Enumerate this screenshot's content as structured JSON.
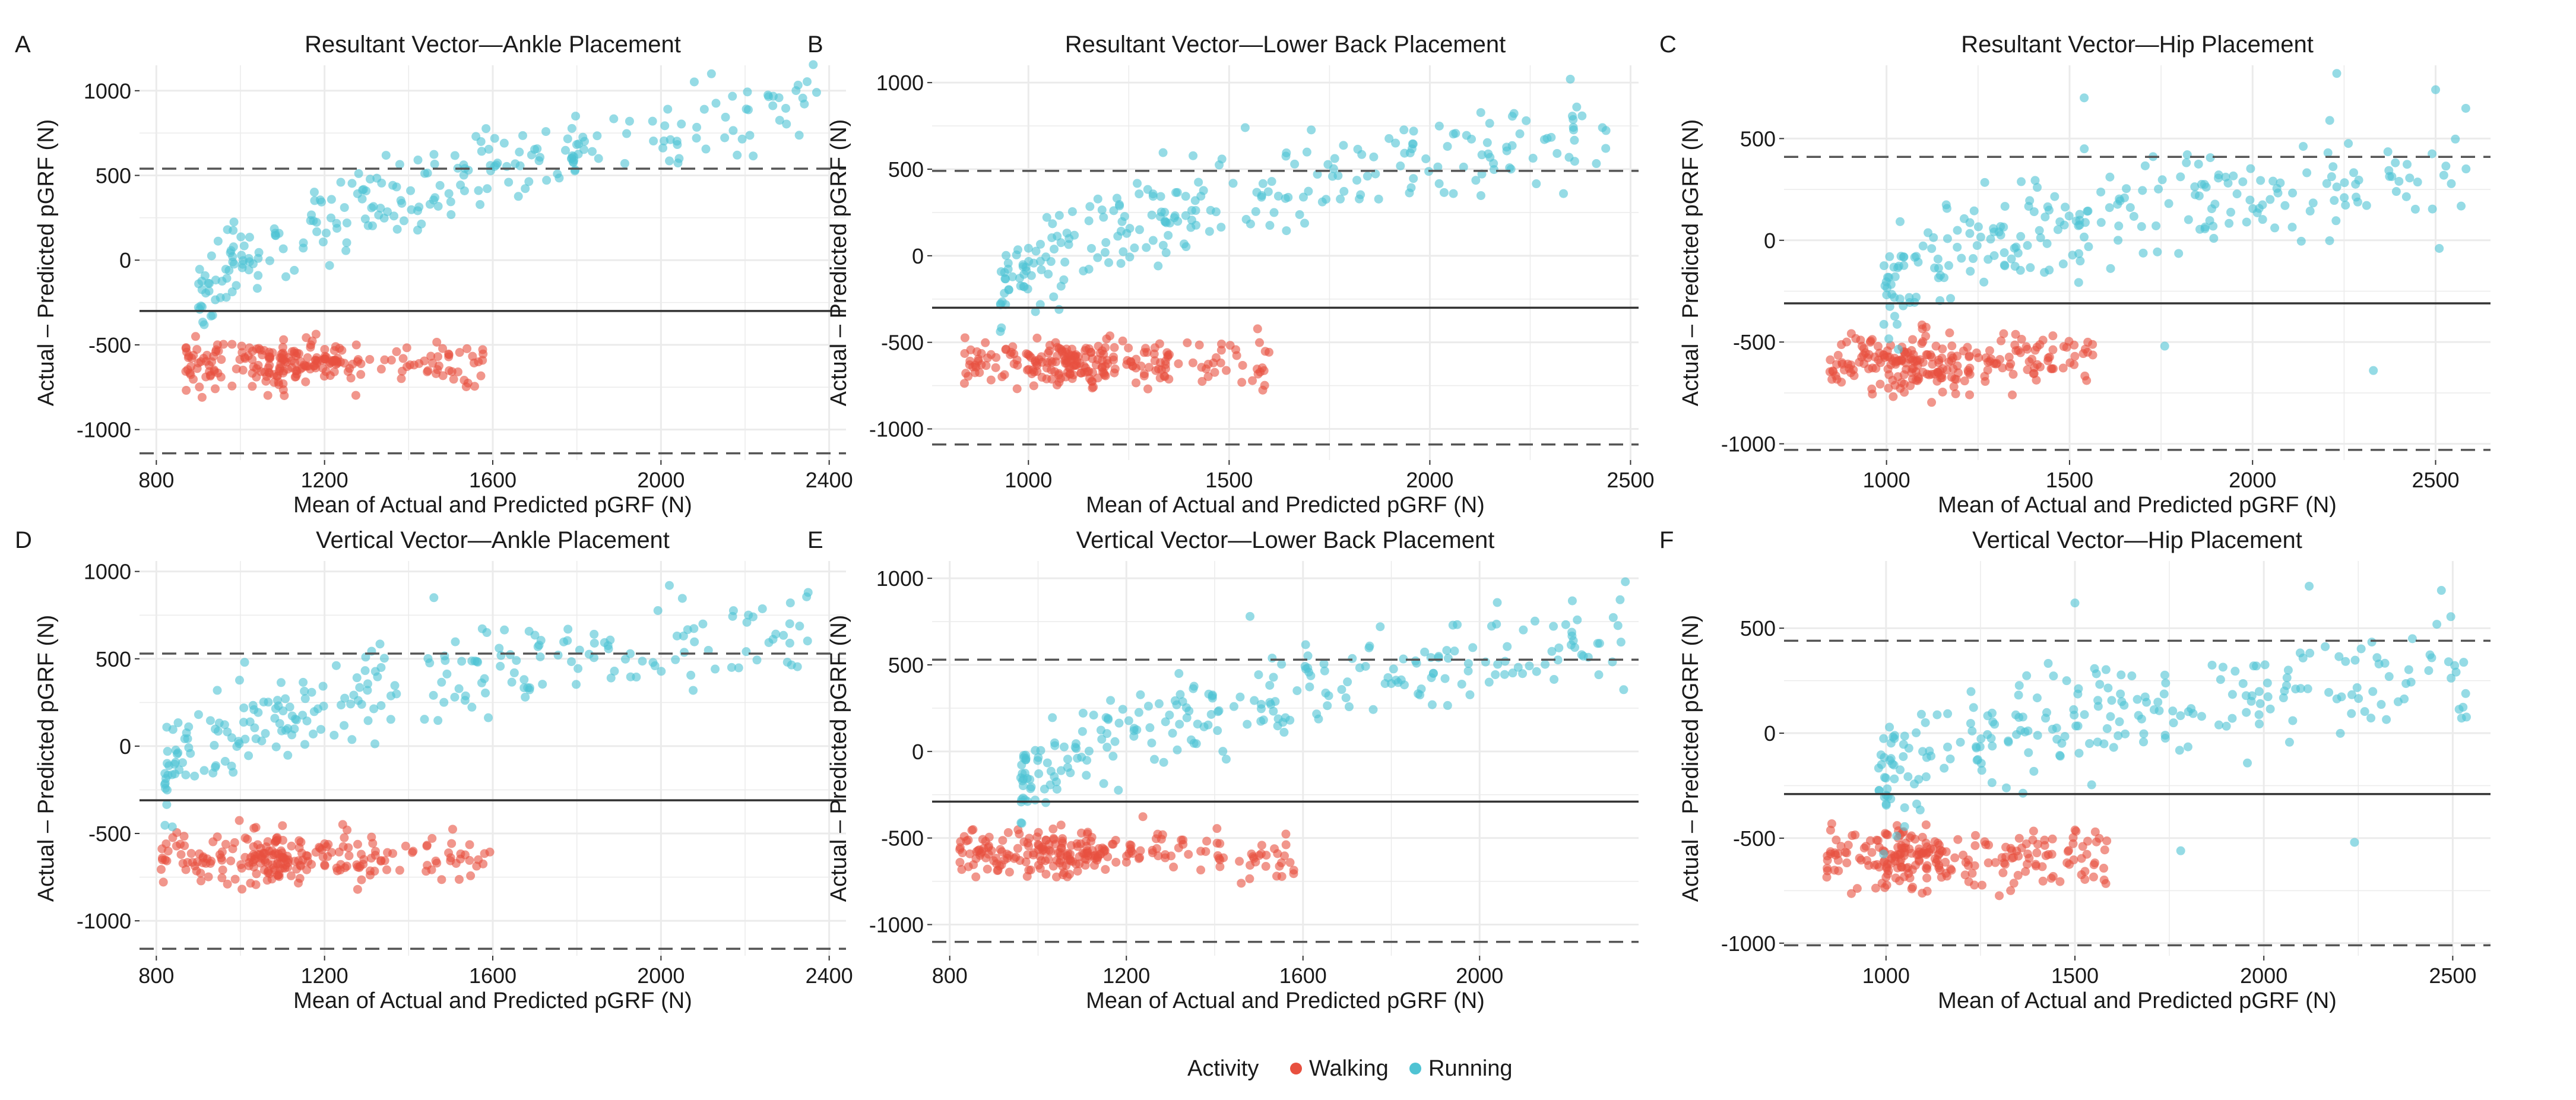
{
  "colors": {
    "walking": "#E8503F",
    "running": "#4FC3D3",
    "grid": "#EBEBEB",
    "mean_line": "#333333",
    "loa_line": "#555555"
  },
  "legend": {
    "title": "Activity",
    "items": [
      "Walking",
      "Running"
    ]
  },
  "chart_data": [
    {
      "panel": "A",
      "type": "scatter",
      "title": "Resultant Vector—Ankle Placement",
      "xlabel": "Mean of Actual and Predicted pGRF (N)",
      "ylabel": "Actual – Predicted pGRF (N)",
      "xlim": [
        760,
        2440
      ],
      "ylim": [
        -1180,
        1150
      ],
      "xticks": [
        800,
        1200,
        1600,
        2000,
        2400
      ],
      "xtick_labels": [
        "800",
        "1200",
        "1600",
        "2000",
        "2400"
      ],
      "yticks": [
        -1000,
        -500,
        0,
        500,
        1000
      ],
      "ytick_labels": [
        "-1000",
        "-500",
        "0",
        "500",
        "1000"
      ],
      "mean_bias": -300,
      "loa_upper": 540,
      "loa_lower": -1140,
      "walking": {
        "x_range": [
          870,
          1580
        ],
        "cx": 1130,
        "y_center": -620,
        "y_spread": 120
      },
      "running": {
        "x_range": [
          900,
          2380
        ],
        "y_at_min": -320,
        "y_at_max": 920,
        "y_spread": 170,
        "extremes": [
          [
            2120,
            1100
          ],
          [
            2370,
            990
          ],
          [
            1980,
            820
          ],
          [
            1560,
            730
          ],
          [
            1020,
            10
          ],
          [
            930,
            -330
          ]
        ]
      }
    },
    {
      "panel": "B",
      "type": "scatter",
      "title": "Resultant Vector—Lower Back Placement",
      "xlabel": "Mean of Actual and Predicted pGRF (N)",
      "ylabel": "Actual – Predicted pGRF (N)",
      "xlim": [
        760,
        2520
      ],
      "ylim": [
        -1180,
        1100
      ],
      "xticks": [
        1000,
        1500,
        2000,
        2500
      ],
      "xtick_labels": [
        "1000",
        "1500",
        "2000",
        "2500"
      ],
      "yticks": [
        -1000,
        -500,
        0,
        500,
        1000
      ],
      "ytick_labels": [
        "-1000",
        "-500",
        "0",
        "500",
        "1000"
      ],
      "mean_bias": -300,
      "loa_upper": 490,
      "loa_lower": -1090,
      "walking": {
        "x_range": [
          840,
          1600
        ],
        "cx": 1100,
        "y_center": -620,
        "y_spread": 115
      },
      "running": {
        "x_range": [
          930,
          2450
        ],
        "y_at_min": -300,
        "y_at_max": 700,
        "y_spread": 180,
        "extremes": [
          [
            2350,
            1020
          ],
          [
            2240,
            780
          ],
          [
            1540,
            740
          ],
          [
            1990,
            560
          ],
          [
            2430,
            740
          ]
        ]
      }
    },
    {
      "panel": "C",
      "type": "scatter",
      "title": "Resultant Vector—Hip Placement",
      "xlabel": "Mean of Actual and Predicted pGRF (N)",
      "ylabel": "Actual – Predicted pGRF (N)",
      "xlim": [
        720,
        2650
      ],
      "ylim": [
        -1080,
        860
      ],
      "xticks": [
        1000,
        1500,
        2000,
        2500
      ],
      "xtick_labels": [
        "1000",
        "1500",
        "2000",
        "2500"
      ],
      "yticks": [
        -1000,
        -500,
        0,
        500
      ],
      "ytick_labels": [
        "-1000",
        "-500",
        "0",
        "500"
      ],
      "mean_bias": -310,
      "loa_upper": 410,
      "loa_lower": -1030,
      "walking": {
        "x_range": [
          840,
          1580
        ],
        "cx": 1080,
        "y_center": -600,
        "y_spread": 110
      },
      "running": {
        "x_range": [
          990,
          2590
        ],
        "y_at_min": -300,
        "y_at_max": 350,
        "y_spread": 180,
        "extremes": [
          [
            2230,
            820
          ],
          [
            1540,
            700
          ],
          [
            2500,
            740
          ],
          [
            2330,
            -640
          ],
          [
            2510,
            -40
          ],
          [
            1760,
            -520
          ]
        ]
      }
    },
    {
      "panel": "D",
      "type": "scatter",
      "title": "Vertical Vector—Ankle Placement",
      "xlabel": "Mean of Actual and Predicted pGRF (N)",
      "ylabel": "Actual – Predicted pGRF (N)",
      "xlim": [
        760,
        2440
      ],
      "ylim": [
        -1200,
        1060
      ],
      "xticks": [
        800,
        1200,
        1600,
        2000,
        2400
      ],
      "xtick_labels": [
        "800",
        "1200",
        "1600",
        "2000",
        "2400"
      ],
      "yticks": [
        -1000,
        -500,
        0,
        500,
        1000
      ],
      "ytick_labels": [
        "-1000",
        "-500",
        "0",
        "500",
        "1000"
      ],
      "mean_bias": -310,
      "loa_upper": 530,
      "loa_lower": -1160,
      "walking": {
        "x_range": [
          810,
          1600
        ],
        "cx": 1100,
        "y_center": -640,
        "y_spread": 120
      },
      "running": {
        "x_range": [
          820,
          2350
        ],
        "y_at_min": -250,
        "y_at_max": 700,
        "y_spread": 180,
        "extremes": [
          [
            2020,
            920
          ],
          [
            2350,
            880
          ],
          [
            1460,
            850
          ],
          [
            820,
            -220
          ],
          [
            1010,
            480
          ]
        ]
      }
    },
    {
      "panel": "E",
      "type": "scatter",
      "title": "Vertical Vector—Lower Back Placement",
      "xlabel": "Mean of Actual and Predicted pGRF (N)",
      "ylabel": "Actual – Predicted pGRF (N)",
      "xlim": [
        760,
        2360
      ],
      "ylim": [
        -1180,
        1100
      ],
      "xticks": [
        800,
        1200,
        1600,
        2000
      ],
      "xtick_labels": [
        "800",
        "1200",
        "1600",
        "2000"
      ],
      "yticks": [
        -1000,
        -500,
        0,
        500,
        1000
      ],
      "ytick_labels": [
        "-1000",
        "-500",
        "0",
        "500",
        "1000"
      ],
      "mean_bias": -290,
      "loa_upper": 530,
      "loa_lower": -1100,
      "walking": {
        "x_range": [
          820,
          1580
        ],
        "cx": 1060,
        "y_center": -600,
        "y_spread": 115
      },
      "running": {
        "x_range": [
          960,
          2330
        ],
        "y_at_min": -300,
        "y_at_max": 650,
        "y_spread": 180,
        "extremes": [
          [
            2330,
            980
          ],
          [
            2210,
            870
          ],
          [
            2040,
            860
          ],
          [
            1480,
            780
          ]
        ]
      }
    },
    {
      "panel": "F",
      "type": "scatter",
      "title": "Vertical Vector—Hip Placement",
      "xlabel": "Mean of Actual and Predicted pGRF (N)",
      "ylabel": "Actual – Predicted pGRF (N)",
      "xlim": [
        730,
        2600
      ],
      "ylim": [
        -1060,
        820
      ],
      "xticks": [
        1000,
        1500,
        2000,
        2500
      ],
      "xtick_labels": [
        "1000",
        "1500",
        "2000",
        "2500"
      ],
      "yticks": [
        -1000,
        -500,
        0,
        500
      ],
      "ytick_labels": [
        "-1000",
        "-500",
        "0",
        "500"
      ],
      "mean_bias": -290,
      "loa_upper": 440,
      "loa_lower": -1010,
      "walking": {
        "x_range": [
          840,
          1590
        ],
        "cx": 1060,
        "y_center": -590,
        "y_spread": 110
      },
      "running": {
        "x_range": [
          980,
          2550
        ],
        "y_at_min": -250,
        "y_at_max": 300,
        "y_spread": 180,
        "extremes": [
          [
            2120,
            700
          ],
          [
            2470,
            680
          ],
          [
            1500,
            620
          ],
          [
            2240,
            -520
          ],
          [
            1780,
            -560
          ]
        ]
      }
    }
  ]
}
